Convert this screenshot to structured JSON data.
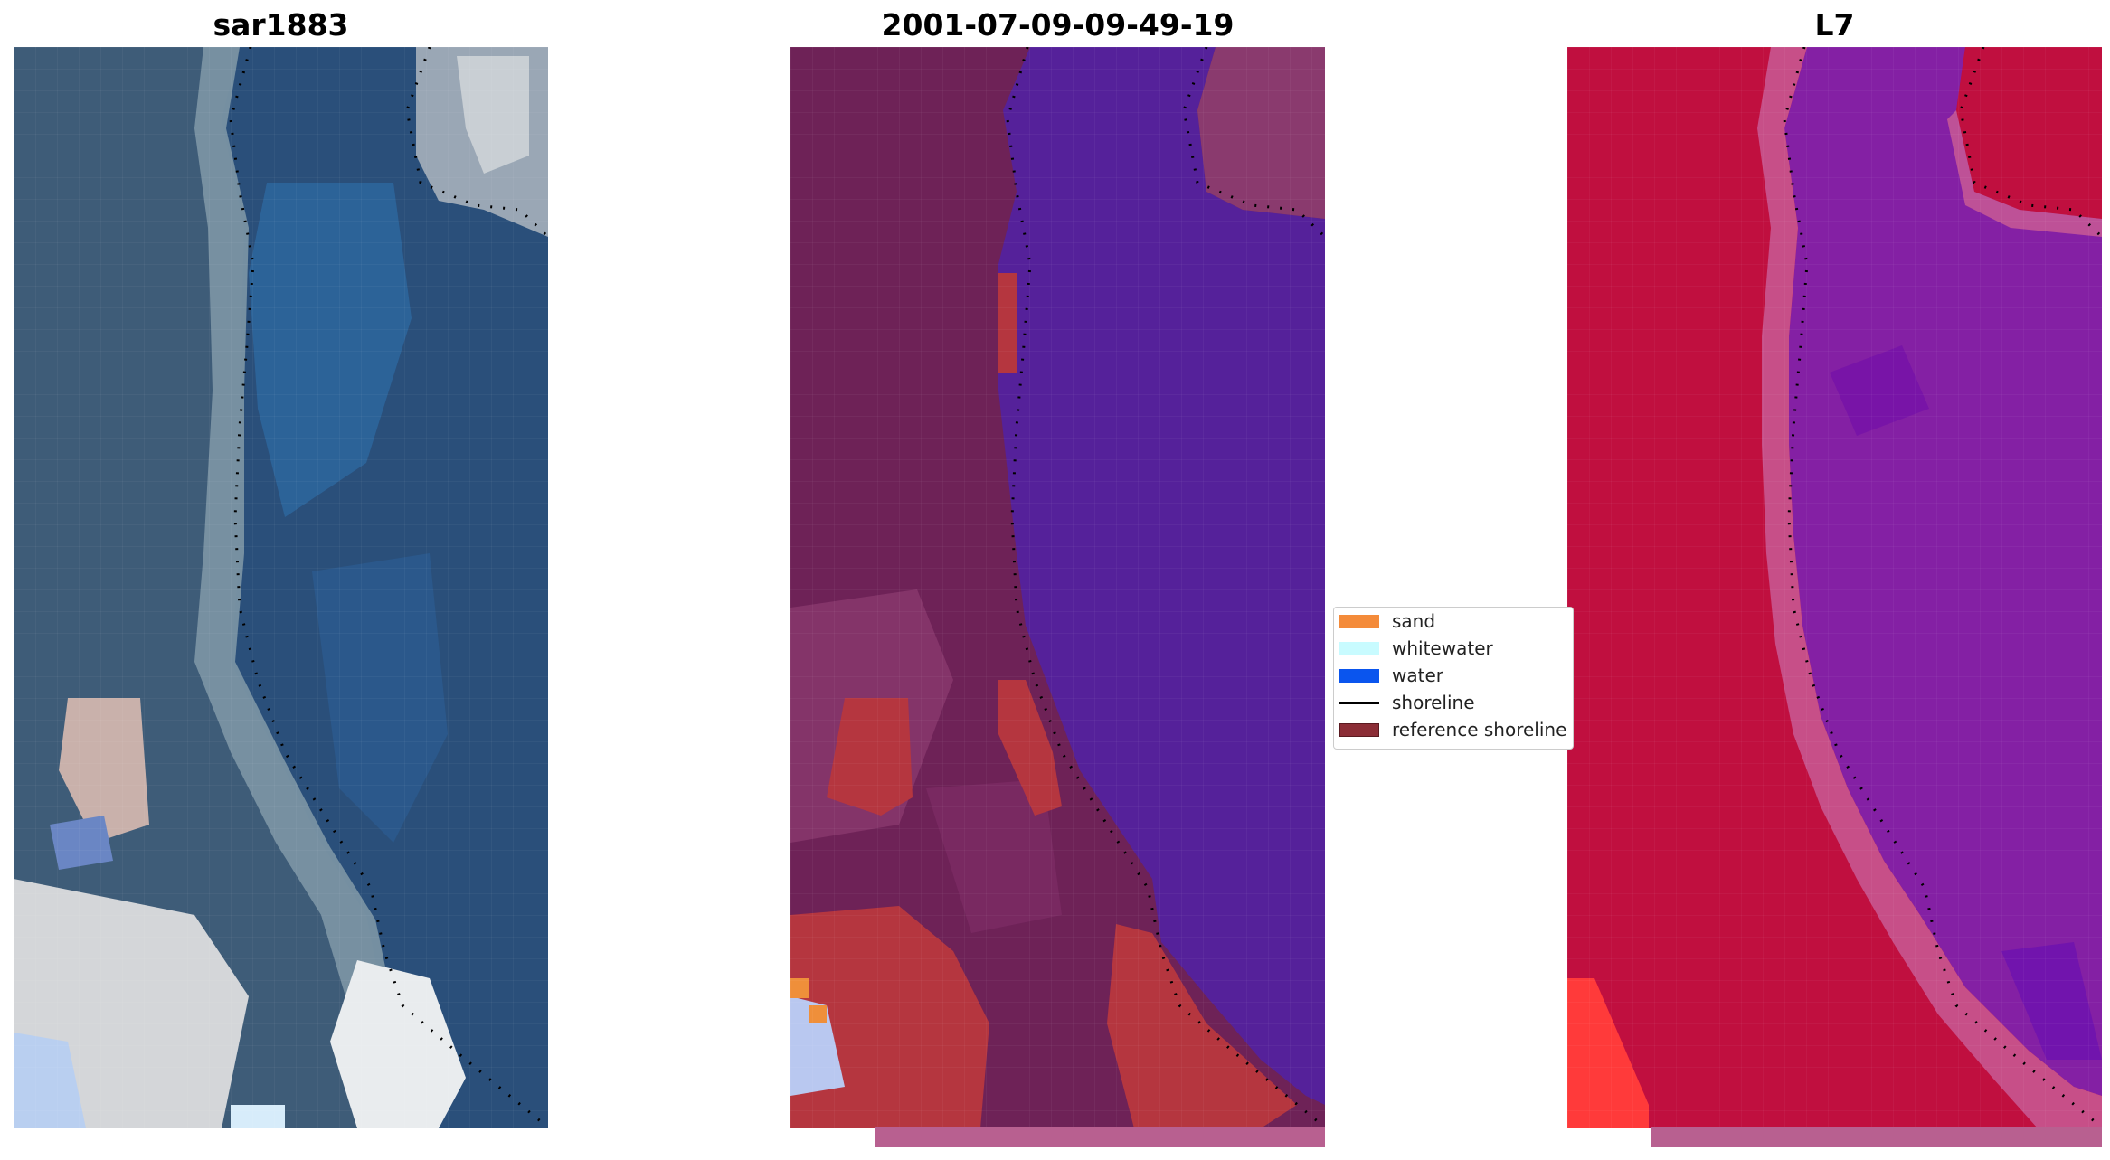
{
  "figure": {
    "titles": {
      "rgb": "sar1883",
      "classification": "2001-07-09-09-49-19",
      "index": "L7"
    },
    "colors": {
      "rgb_water": "#2a4f7a",
      "rgb_water_light": "#2e6aa3",
      "rgb_land": "#3a5a78",
      "rgb_sand": "#d8d8d8",
      "class_land": "#6e2257",
      "class_land_light": "#8a3a6e",
      "class_water": "#55219a",
      "class_sand": "#b5363f",
      "class_sand_bright": "#ef8f3a",
      "index_land": "#c00f3f",
      "index_water": "#8420a4",
      "index_edge": "#c85a95",
      "index_bright": "#ff3a3a",
      "strip": "#b86090",
      "shoreline": "#000000"
    },
    "legend": {
      "items": [
        {
          "label": "sand",
          "color": "#f48b3a",
          "kind": "patch",
          "icon": "sand-swatch"
        },
        {
          "label": "whitewater",
          "color": "#c8fbff",
          "kind": "patch",
          "icon": "whitewater-swatch"
        },
        {
          "label": "water",
          "color": "#0a55ee",
          "kind": "patch",
          "icon": "water-swatch"
        },
        {
          "label": "shoreline",
          "color": "#000000",
          "kind": "line",
          "icon": "shoreline-line"
        },
        {
          "label": "reference shoreline",
          "color": "#8b2d36",
          "kind": "patch",
          "icon": "reference-shoreline-swatch"
        }
      ]
    }
  }
}
